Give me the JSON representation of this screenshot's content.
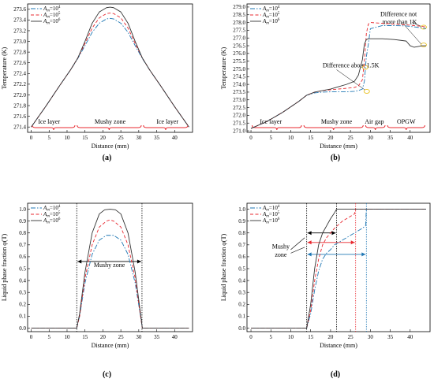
{
  "chart_data": [
    {
      "panel": "(a)",
      "type": "line",
      "xlabel": "Distance (mm)",
      "ylabel": "Temperature (K)",
      "xlim": [
        -1,
        45
      ],
      "ylim": [
        271.3,
        273.7
      ],
      "xticks": [
        0,
        5,
        10,
        15,
        20,
        25,
        30,
        35,
        40
      ],
      "yticks": [
        271.4,
        271.6,
        271.8,
        272.0,
        272.2,
        272.4,
        272.6,
        272.8,
        273.0,
        273.2,
        273.4,
        273.6
      ],
      "ytick_decimals": 1,
      "legend": {
        "position": "top-left",
        "items": [
          "A_m=10^4",
          "A_m=10^5",
          "A_m=10^6"
        ]
      },
      "region_labels": [
        {
          "text": "Ice layer",
          "x": 5
        },
        {
          "text": "Mushy zone",
          "x": 22
        },
        {
          "text": "Ice layer",
          "x": 38
        }
      ],
      "region_bounds": [
        0,
        12.5,
        31,
        44
      ],
      "series": [
        {
          "name": "A_m=10^4",
          "color": "#1f77b4",
          "dash": "6,2,1.5,2",
          "x": [
            0,
            4,
            8,
            11,
            13,
            15,
            17,
            19,
            21,
            22,
            23,
            25,
            27,
            29,
            31,
            33,
            36,
            40,
            44
          ],
          "y": [
            271.4,
            271.78,
            272.18,
            272.47,
            272.68,
            272.92,
            273.17,
            273.34,
            273.42,
            273.43,
            273.42,
            273.34,
            273.17,
            272.92,
            272.68,
            272.47,
            272.18,
            271.78,
            271.4
          ]
        },
        {
          "name": "A_m=10^5",
          "color": "#e8282f",
          "dash": "4,2.5",
          "x": [
            0,
            4,
            8,
            11,
            13,
            15,
            17,
            19,
            21,
            22,
            23,
            25,
            27,
            29,
            31,
            33,
            36,
            40,
            44
          ],
          "y": [
            271.4,
            271.78,
            272.18,
            272.47,
            272.69,
            272.96,
            273.25,
            273.44,
            273.52,
            273.53,
            273.52,
            273.44,
            273.25,
            272.96,
            272.69,
            272.47,
            272.18,
            271.78,
            271.4
          ]
        },
        {
          "name": "A_m=10^6",
          "color": "#333333",
          "dash": "",
          "x": [
            0,
            4,
            8,
            11,
            13,
            15,
            17,
            19,
            21,
            22,
            23,
            25,
            27,
            29,
            31,
            33,
            36,
            40,
            44
          ],
          "y": [
            271.4,
            271.78,
            272.18,
            272.47,
            272.69,
            273.0,
            273.34,
            273.55,
            273.63,
            273.64,
            273.63,
            273.55,
            273.34,
            273.0,
            272.69,
            272.47,
            272.18,
            271.78,
            271.4
          ]
        }
      ]
    },
    {
      "panel": "(b)",
      "type": "line",
      "xlabel": "Distance (mm)",
      "ylabel": "Temperature (K)",
      "xlim": [
        -1,
        45
      ],
      "ylim": [
        270.9,
        279.2
      ],
      "xticks": [
        0,
        5,
        10,
        15,
        20,
        25,
        30,
        35,
        40
      ],
      "yticks": [
        271.0,
        271.5,
        272.0,
        272.5,
        273.0,
        273.5,
        274.0,
        274.5,
        275.0,
        275.5,
        276.0,
        276.5,
        277.0,
        277.5,
        278.0,
        278.5,
        279.0
      ],
      "ytick_decimals": 1,
      "legend": {
        "position": "top-left",
        "items": [
          "A_m=10^4",
          "A_m=10^5",
          "A_m=10^6"
        ]
      },
      "region_labels": [
        {
          "text": "Ice layer",
          "x": 5
        },
        {
          "text": "Mushy zone",
          "x": 21.5
        },
        {
          "text": "Air gap",
          "x": 31
        },
        {
          "text": "OPGW",
          "x": 39
        }
      ],
      "region_bounds": [
        0,
        13,
        28.5,
        34,
        44
      ],
      "annotations": [
        {
          "text": "Difference not",
          "x": 32.5,
          "y": 278.4
        },
        {
          "text": "more than 1K",
          "x": 33,
          "y": 277.9
        },
        {
          "text": "Difference about 1.5K",
          "x": 18,
          "y": 275.1
        }
      ],
      "series": [
        {
          "name": "A_m=10^4",
          "color": "#1f77b4",
          "dash": "6,2,1.5,2",
          "x": [
            0,
            4,
            8,
            12,
            14,
            16,
            18,
            20,
            22,
            24,
            26,
            27,
            28,
            28.5,
            29,
            29.5,
            30,
            33,
            36,
            39,
            41,
            43,
            44
          ],
          "y": [
            271.15,
            271.6,
            272.2,
            272.9,
            273.3,
            273.45,
            273.5,
            273.52,
            273.52,
            273.52,
            273.55,
            273.6,
            273.7,
            274.2,
            275.8,
            276.6,
            277.6,
            277.8,
            277.8,
            277.78,
            277.72,
            277.65,
            277.6
          ]
        },
        {
          "name": "A_m=10^5",
          "color": "#e8282f",
          "dash": "4,2.5",
          "x": [
            0,
            4,
            8,
            12,
            14,
            16,
            18,
            20,
            22,
            24,
            26,
            27,
            28,
            28.5,
            29,
            29.5,
            30,
            33,
            36,
            39,
            41,
            43,
            44
          ],
          "y": [
            271.15,
            271.6,
            272.2,
            272.9,
            273.3,
            273.5,
            273.6,
            273.65,
            273.7,
            273.75,
            273.8,
            273.9,
            274.3,
            275.5,
            277.3,
            277.9,
            278.0,
            277.95,
            277.9,
            277.85,
            277.8,
            277.75,
            277.7
          ]
        },
        {
          "name": "A_m=10^6",
          "color": "#333333",
          "dash": "",
          "x": [
            0,
            4,
            8,
            12,
            14,
            16,
            18,
            20,
            22,
            24,
            26,
            27,
            28,
            28.5,
            29,
            29.5,
            30,
            33,
            36,
            39,
            40,
            41,
            42,
            43,
            44
          ],
          "y": [
            271.15,
            271.6,
            272.2,
            272.9,
            273.3,
            273.5,
            273.6,
            273.7,
            273.85,
            274.0,
            274.2,
            274.6,
            275.6,
            276.6,
            276.9,
            276.95,
            276.95,
            276.95,
            276.9,
            276.8,
            276.5,
            276.4,
            276.45,
            276.5,
            276.5
          ]
        }
      ]
    },
    {
      "panel": "(c)",
      "type": "line",
      "xlabel": "Distance (mm)",
      "ylabel": "Liquid phase fraction φ(T)",
      "xlim": [
        -1,
        45
      ],
      "ylim": [
        -0.03,
        1.05
      ],
      "xticks": [
        0,
        5,
        10,
        15,
        20,
        25,
        30,
        35,
        40
      ],
      "yticks": [
        0.0,
        0.1,
        0.2,
        0.3,
        0.4,
        0.5,
        0.6,
        0.7,
        0.8,
        0.9,
        1.0
      ],
      "ytick_decimals": 1,
      "legend": {
        "position": "top-left",
        "items": [
          "A_m=10^4",
          "A_m=10^5",
          "A_m=10^6"
        ]
      },
      "region_label": "Mushy zone",
      "region": [
        12.7,
        30.9
      ],
      "series": [
        {
          "name": "A_m=10^4",
          "color": "#1f77b4",
          "dash": "6,2,1.5,2",
          "x": [
            0,
            12.7,
            13.5,
            15,
            17,
            19,
            21,
            22,
            23,
            25,
            27,
            29,
            30.5,
            31,
            44
          ],
          "y": [
            0,
            0,
            0.1,
            0.38,
            0.62,
            0.74,
            0.78,
            0.78,
            0.78,
            0.74,
            0.62,
            0.38,
            0.1,
            0,
            0
          ]
        },
        {
          "name": "A_m=10^5",
          "color": "#e8282f",
          "dash": "4,2.5",
          "x": [
            0,
            12.7,
            13.5,
            15,
            17,
            19,
            21,
            22,
            23,
            25,
            27,
            29,
            30.5,
            31,
            44
          ],
          "y": [
            0,
            0,
            0.1,
            0.42,
            0.7,
            0.85,
            0.9,
            0.91,
            0.9,
            0.85,
            0.7,
            0.42,
            0.1,
            0,
            0
          ]
        },
        {
          "name": "A_m=10^6",
          "color": "#333333",
          "dash": "",
          "x": [
            0,
            12.7,
            13.5,
            15,
            17,
            19,
            20.5,
            22,
            23.5,
            25,
            27,
            29,
            30.5,
            31,
            44
          ],
          "y": [
            0,
            0,
            0.12,
            0.47,
            0.8,
            0.96,
            0.995,
            1.0,
            0.995,
            0.96,
            0.8,
            0.47,
            0.12,
            0,
            0
          ]
        }
      ]
    },
    {
      "panel": "(d)",
      "type": "line",
      "xlabel": "Distance (mm)",
      "ylabel": "Liquid phase fraction φ(T)",
      "xlim": [
        -1,
        45
      ],
      "ylim": [
        -0.03,
        1.05
      ],
      "xticks": [
        0,
        5,
        10,
        15,
        20,
        25,
        30,
        35,
        40
      ],
      "yticks": [
        0.0,
        0.1,
        0.2,
        0.3,
        0.4,
        0.5,
        0.6,
        0.7,
        0.8,
        0.9,
        1.0
      ],
      "ytick_decimals": 1,
      "legend": {
        "position": "top-left",
        "items": [
          "A_m=10^4",
          "A_m=10^5",
          "A_m=10^6"
        ]
      },
      "annotation": [
        "Mushy",
        "zone"
      ],
      "arrows": [
        {
          "x1": 14,
          "x2": 21.5,
          "y": 0.8,
          "color": "#000000"
        },
        {
          "x1": 14,
          "x2": 26.3,
          "y": 0.72,
          "color": "#e8282f"
        },
        {
          "x1": 14,
          "x2": 29,
          "y": 0.62,
          "color": "#1f77b4"
        }
      ],
      "vlines": [
        {
          "x": 14,
          "color": "#000000"
        },
        {
          "x": 21.5,
          "color": "#000000"
        },
        {
          "x": 26.3,
          "color": "#e8282f"
        },
        {
          "x": 29,
          "color": "#1f77b4"
        }
      ],
      "series": [
        {
          "name": "A_m=10^4",
          "color": "#1f77b4",
          "dash": "6,2,1.5,2",
          "x": [
            0,
            14,
            15,
            16,
            17,
            18,
            19,
            20,
            21,
            22,
            23,
            24,
            25,
            26,
            27,
            28,
            28.8,
            29,
            44
          ],
          "y": [
            0,
            0,
            0.12,
            0.32,
            0.48,
            0.58,
            0.63,
            0.66,
            0.7,
            0.72,
            0.74,
            0.76,
            0.78,
            0.8,
            0.82,
            0.84,
            0.86,
            1.0,
            1.0
          ]
        },
        {
          "name": "A_m=10^5",
          "color": "#e8282f",
          "dash": "4,2.5",
          "x": [
            0,
            14,
            15,
            16,
            17,
            18,
            19,
            20,
            21,
            22,
            23,
            24,
            25,
            26,
            26.3,
            44
          ],
          "y": [
            0,
            0,
            0.15,
            0.4,
            0.58,
            0.7,
            0.76,
            0.8,
            0.84,
            0.87,
            0.9,
            0.92,
            0.94,
            0.96,
            1.0,
            1.0
          ]
        },
        {
          "name": "A_m=10^6",
          "color": "#333333",
          "dash": "",
          "x": [
            0,
            14,
            15,
            16,
            17,
            18,
            19,
            20,
            21,
            21.5,
            44
          ],
          "y": [
            0,
            0,
            0.2,
            0.5,
            0.7,
            0.8,
            0.86,
            0.92,
            0.97,
            1.0,
            1.0
          ]
        }
      ]
    }
  ]
}
